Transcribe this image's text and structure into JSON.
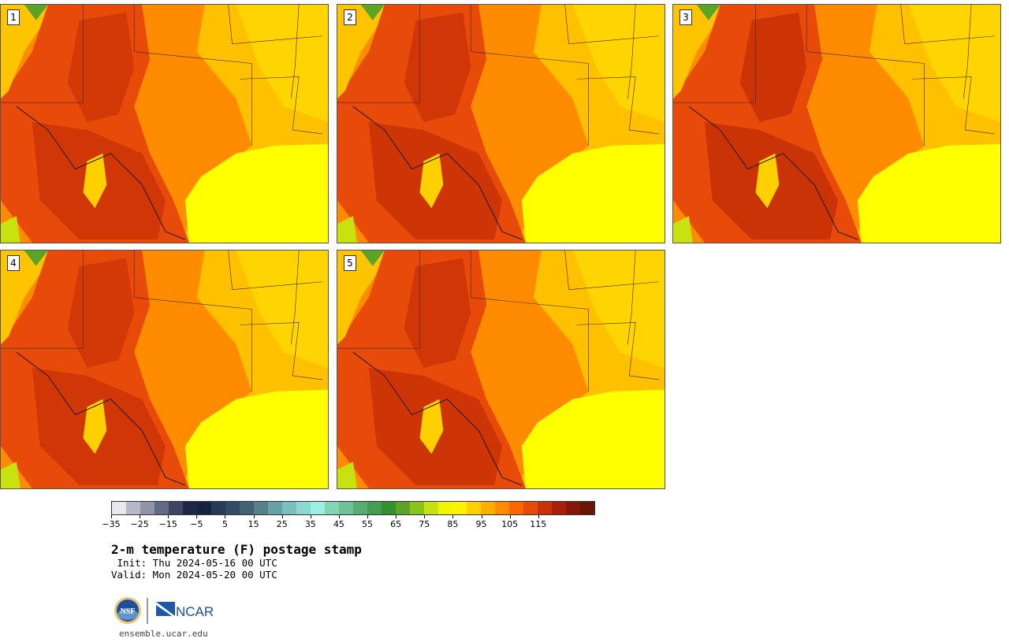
{
  "panels": [
    {
      "label": "1"
    },
    {
      "label": "2"
    },
    {
      "label": "3"
    },
    {
      "label": "4"
    },
    {
      "label": "5"
    }
  ],
  "colorbar": {
    "colors": [
      "#e7e9ee",
      "#b7b9c6",
      "#9094a6",
      "#636a85",
      "#3e4563",
      "#1f2744",
      "#152240",
      "#263b57",
      "#324c63",
      "#426272",
      "#55818b",
      "#68a2a8",
      "#7bbfbf",
      "#8dd9d2",
      "#9bf0e1",
      "#86d4b6",
      "#6fc094",
      "#59ad72",
      "#449e53",
      "#379030",
      "#5ba428",
      "#8ac31a",
      "#c7e20e",
      "#f3f400",
      "#fff200",
      "#ffd000",
      "#ffae00",
      "#ff8c00",
      "#ff6500",
      "#e84a0a",
      "#c93206",
      "#a82008",
      "#881608",
      "#6b1408"
    ],
    "tick_labels": [
      "−35",
      "−25",
      "−15",
      "−5",
      "5",
      "15",
      "25",
      "35",
      "45",
      "55",
      "65",
      "75",
      "85",
      "95",
      "105",
      "115"
    ],
    "min": -35,
    "max": 120,
    "step": 5,
    "units": "F"
  },
  "title": "2-m temperature (F) postage stamp",
  "init": " Init: Thu 2024-05-16 00 UTC",
  "valid": "Valid: Mon 2024-05-20 00 UTC",
  "logos": {
    "nsf": "NSF",
    "ncar": "NCAR"
  },
  "url": "ensemble.ucar.edu",
  "colors": {
    "gulf": "#ffff00",
    "hot": "#e84a0a",
    "veryhot": "#c93206",
    "warm": "#ff8c00",
    "mild": "#ffc000"
  }
}
